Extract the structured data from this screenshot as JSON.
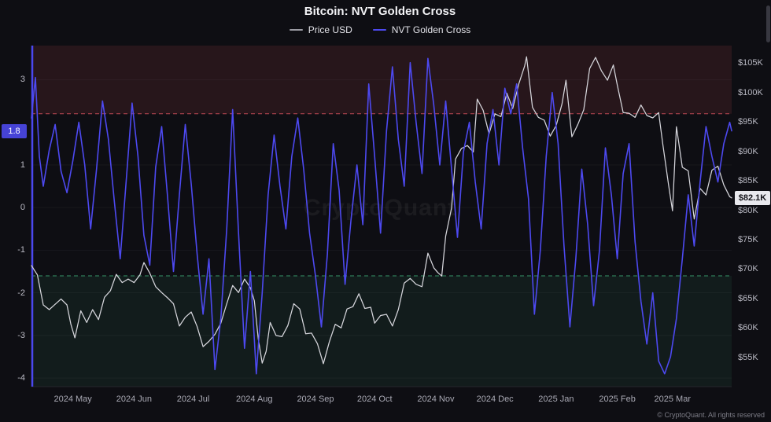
{
  "watermark": "CryptoQuant",
  "footer": "© CryptoQuant. All rights reserved",
  "chart_data": {
    "type": "line",
    "title": "Bitcoin: NVT Golden Cross",
    "x_unit": "days since 2024-04-10",
    "x_axis": {
      "ticks": [
        {
          "d": 21,
          "label": "2024 May"
        },
        {
          "d": 52,
          "label": "2024 Jun"
        },
        {
          "d": 82,
          "label": "2024 Jul"
        },
        {
          "d": 113,
          "label": "2024 Aug"
        },
        {
          "d": 144,
          "label": "2024 Sep"
        },
        {
          "d": 174,
          "label": "2024 Oct"
        },
        {
          "d": 205,
          "label": "2024 Nov"
        },
        {
          "d": 235,
          "label": "2024 Dec"
        },
        {
          "d": 266,
          "label": "2025 Jan"
        },
        {
          "d": 297,
          "label": "2025 Feb"
        },
        {
          "d": 325,
          "label": "2025 Mar"
        }
      ]
    },
    "left_axis": {
      "name": "NVT Golden Cross",
      "range": [
        -4.2,
        3.8
      ],
      "axis_line_color": "#4b48ef",
      "ticks": [
        {
          "v": 3,
          "label": "3"
        },
        {
          "v": 1,
          "label": "1"
        },
        {
          "v": 0,
          "label": "0"
        },
        {
          "v": -1,
          "label": "-1"
        },
        {
          "v": -2,
          "label": "-2"
        },
        {
          "v": -3,
          "label": "-3"
        },
        {
          "v": -4,
          "label": "-4"
        }
      ],
      "current": {
        "v": 1.8,
        "label": "1.8"
      }
    },
    "right_axis": {
      "name": "Price USD",
      "unit": "USD thousands",
      "range": [
        50,
        108
      ],
      "ticks": [
        {
          "v": 105,
          "label": "$105K"
        },
        {
          "v": 100,
          "label": "$100K"
        },
        {
          "v": 95,
          "label": "$95K"
        },
        {
          "v": 90,
          "label": "$90K"
        },
        {
          "v": 85,
          "label": "$85K"
        },
        {
          "v": 80,
          "label": "$80K"
        },
        {
          "v": 75,
          "label": "$75K"
        },
        {
          "v": 70,
          "label": "$70K"
        },
        {
          "v": 65,
          "label": "$65K"
        },
        {
          "v": 60,
          "label": "$60K"
        },
        {
          "v": 55,
          "label": "$55K"
        }
      ],
      "current": {
        "v": 82.1,
        "label": "$82.1K"
      }
    },
    "thresholds": {
      "overbought": {
        "value": 2.2,
        "color": "#d9535f"
      },
      "oversold": {
        "value": -1.6,
        "color": "#3fae7a"
      }
    },
    "zones": {
      "overbought_fill": "rgba(222,80,92,0.12)",
      "oversold_fill": "rgba(63,174,122,0.09)"
    },
    "series": [
      {
        "name": "Price USD",
        "axis": "right",
        "color": "#d6d6dc",
        "width": 1.25,
        "points": [
          [
            0,
            70.6
          ],
          [
            3,
            69.0
          ],
          [
            6,
            63.9
          ],
          [
            9,
            63.1
          ],
          [
            12,
            64.0
          ],
          [
            15,
            64.9
          ],
          [
            18,
            63.9
          ],
          [
            20,
            60.6
          ],
          [
            22,
            58.3
          ],
          [
            25,
            62.9
          ],
          [
            28,
            60.9
          ],
          [
            31,
            63.1
          ],
          [
            34,
            61.4
          ],
          [
            37,
            65.2
          ],
          [
            40,
            66.3
          ],
          [
            43,
            69.1
          ],
          [
            46,
            67.7
          ],
          [
            49,
            68.3
          ],
          [
            52,
            67.7
          ],
          [
            55,
            69.0
          ],
          [
            57,
            71.1
          ],
          [
            60,
            69.3
          ],
          [
            63,
            67.0
          ],
          [
            66,
            66.0
          ],
          [
            69,
            65.1
          ],
          [
            72,
            64.1
          ],
          [
            75,
            60.3
          ],
          [
            78,
            61.8
          ],
          [
            81,
            62.7
          ],
          [
            84,
            60.2
          ],
          [
            87,
            56.8
          ],
          [
            90,
            57.7
          ],
          [
            93,
            58.9
          ],
          [
            96,
            60.8
          ],
          [
            99,
            64.1
          ],
          [
            102,
            67.2
          ],
          [
            105,
            66.0
          ],
          [
            108,
            68.3
          ],
          [
            111,
            66.8
          ],
          [
            113,
            64.6
          ],
          [
            115,
            58.1
          ],
          [
            117,
            54.0
          ],
          [
            119,
            56.0
          ],
          [
            121,
            60.9
          ],
          [
            124,
            58.7
          ],
          [
            127,
            58.5
          ],
          [
            130,
            60.4
          ],
          [
            133,
            64.1
          ],
          [
            136,
            63.2
          ],
          [
            139,
            59.0
          ],
          [
            142,
            59.1
          ],
          [
            145,
            57.3
          ],
          [
            148,
            53.9
          ],
          [
            151,
            57.6
          ],
          [
            154,
            60.6
          ],
          [
            157,
            60.0
          ],
          [
            160,
            63.2
          ],
          [
            163,
            63.6
          ],
          [
            166,
            65.8
          ],
          [
            169,
            63.3
          ],
          [
            172,
            63.5
          ],
          [
            174,
            60.8
          ],
          [
            177,
            62.1
          ],
          [
            180,
            62.3
          ],
          [
            183,
            60.3
          ],
          [
            186,
            63.1
          ],
          [
            189,
            67.6
          ],
          [
            192,
            68.4
          ],
          [
            195,
            67.4
          ],
          [
            198,
            67.0
          ],
          [
            201,
            72.7
          ],
          [
            204,
            70.2
          ],
          [
            206,
            69.4
          ],
          [
            208,
            68.8
          ],
          [
            210,
            75.6
          ],
          [
            213,
            80.4
          ],
          [
            215,
            88.7
          ],
          [
            218,
            90.5
          ],
          [
            221,
            91.0
          ],
          [
            224,
            89.9
          ],
          [
            226,
            98.9
          ],
          [
            229,
            97.0
          ],
          [
            232,
            93.0
          ],
          [
            235,
            96.4
          ],
          [
            238,
            95.9
          ],
          [
            241,
            99.9
          ],
          [
            244,
            97.3
          ],
          [
            247,
            101.4
          ],
          [
            250,
            104.5
          ],
          [
            251,
            106.1
          ],
          [
            254,
            97.5
          ],
          [
            257,
            95.8
          ],
          [
            260,
            95.3
          ],
          [
            263,
            92.6
          ],
          [
            266,
            94.4
          ],
          [
            269,
            98.1
          ],
          [
            271,
            102.1
          ],
          [
            274,
            92.5
          ],
          [
            277,
            94.6
          ],
          [
            280,
            97.1
          ],
          [
            283,
            104.1
          ],
          [
            286,
            106.0
          ],
          [
            289,
            103.7
          ],
          [
            292,
            102.1
          ],
          [
            295,
            104.7
          ],
          [
            297,
            101.3
          ],
          [
            300,
            96.6
          ],
          [
            303,
            96.5
          ],
          [
            306,
            95.8
          ],
          [
            309,
            97.9
          ],
          [
            312,
            96.1
          ],
          [
            315,
            95.7
          ],
          [
            318,
            96.6
          ],
          [
            320,
            91.4
          ],
          [
            323,
            84.3
          ],
          [
            325,
            79.9
          ],
          [
            327,
            94.2
          ],
          [
            330,
            87.3
          ],
          [
            333,
            86.7
          ],
          [
            336,
            78.5
          ],
          [
            339,
            83.7
          ],
          [
            342,
            82.6
          ],
          [
            345,
            86.8
          ],
          [
            348,
            87.5
          ],
          [
            351,
            84.3
          ],
          [
            354,
            82.3
          ],
          [
            355,
            82.1
          ]
        ]
      },
      {
        "name": "NVT Golden Cross",
        "axis": "left",
        "color": "#4d49f0",
        "width": 1.6,
        "points": [
          [
            0,
            2.1
          ],
          [
            2,
            3.05
          ],
          [
            4,
            1.2
          ],
          [
            6,
            0.5
          ],
          [
            9,
            1.35
          ],
          [
            12,
            1.95
          ],
          [
            15,
            0.85
          ],
          [
            18,
            0.35
          ],
          [
            21,
            1.1
          ],
          [
            24,
            2.0
          ],
          [
            27,
            1.0
          ],
          [
            30,
            -0.5
          ],
          [
            33,
            0.9
          ],
          [
            36,
            2.5
          ],
          [
            39,
            1.6
          ],
          [
            42,
            0.15
          ],
          [
            45,
            -1.2
          ],
          [
            48,
            0.6
          ],
          [
            51,
            2.45
          ],
          [
            54,
            1.2
          ],
          [
            57,
            -0.65
          ],
          [
            60,
            -1.35
          ],
          [
            63,
            0.95
          ],
          [
            66,
            1.9
          ],
          [
            69,
            0.25
          ],
          [
            72,
            -1.5
          ],
          [
            75,
            0.3
          ],
          [
            78,
            1.95
          ],
          [
            81,
            0.55
          ],
          [
            84,
            -1.1
          ],
          [
            87,
            -2.5
          ],
          [
            90,
            -1.2
          ],
          [
            93,
            -3.8
          ],
          [
            96,
            -2.6
          ],
          [
            99,
            -0.5
          ],
          [
            102,
            2.3
          ],
          [
            105,
            -0.6
          ],
          [
            108,
            -3.3
          ],
          [
            111,
            -1.5
          ],
          [
            114,
            -3.9
          ],
          [
            117,
            -2.0
          ],
          [
            120,
            0.3
          ],
          [
            123,
            1.7
          ],
          [
            126,
            0.5
          ],
          [
            129,
            -0.5
          ],
          [
            132,
            1.2
          ],
          [
            135,
            2.1
          ],
          [
            138,
            0.9
          ],
          [
            141,
            -0.6
          ],
          [
            144,
            -1.6
          ],
          [
            147,
            -2.8
          ],
          [
            150,
            -1.1
          ],
          [
            153,
            1.5
          ],
          [
            156,
            0.4
          ],
          [
            159,
            -1.8
          ],
          [
            162,
            -0.3
          ],
          [
            165,
            1.0
          ],
          [
            168,
            -0.4
          ],
          [
            171,
            2.9
          ],
          [
            174,
            1.2
          ],
          [
            177,
            -0.6
          ],
          [
            180,
            1.8
          ],
          [
            183,
            3.3
          ],
          [
            186,
            1.6
          ],
          [
            189,
            0.5
          ],
          [
            192,
            3.4
          ],
          [
            195,
            2.0
          ],
          [
            198,
            0.8
          ],
          [
            201,
            3.5
          ],
          [
            204,
            2.4
          ],
          [
            207,
            1.0
          ],
          [
            210,
            2.5
          ],
          [
            213,
            0.9
          ],
          [
            216,
            -0.7
          ],
          [
            219,
            1.3
          ],
          [
            222,
            2.0
          ],
          [
            225,
            0.6
          ],
          [
            228,
            -0.5
          ],
          [
            231,
            1.5
          ],
          [
            234,
            2.3
          ],
          [
            237,
            1.0
          ],
          [
            240,
            2.8
          ],
          [
            243,
            2.2
          ],
          [
            246,
            2.9
          ],
          [
            249,
            1.4
          ],
          [
            252,
            0.2
          ],
          [
            255,
            -2.5
          ],
          [
            258,
            -1.0
          ],
          [
            261,
            1.2
          ],
          [
            264,
            2.7
          ],
          [
            267,
            1.5
          ],
          [
            270,
            -0.9
          ],
          [
            273,
            -2.8
          ],
          [
            276,
            -1.2
          ],
          [
            279,
            0.9
          ],
          [
            282,
            -0.4
          ],
          [
            285,
            -2.3
          ],
          [
            288,
            -1.0
          ],
          [
            291,
            1.4
          ],
          [
            294,
            0.3
          ],
          [
            297,
            -1.2
          ],
          [
            300,
            0.8
          ],
          [
            303,
            1.5
          ],
          [
            306,
            -0.8
          ],
          [
            309,
            -2.2
          ],
          [
            312,
            -3.2
          ],
          [
            315,
            -2.0
          ],
          [
            318,
            -3.6
          ],
          [
            321,
            -3.9
          ],
          [
            324,
            -3.5
          ],
          [
            327,
            -2.6
          ],
          [
            330,
            -1.2
          ],
          [
            333,
            0.3
          ],
          [
            336,
            -0.9
          ],
          [
            339,
            0.6
          ],
          [
            342,
            1.9
          ],
          [
            345,
            1.2
          ],
          [
            348,
            0.6
          ],
          [
            351,
            1.5
          ],
          [
            354,
            2.0
          ],
          [
            355,
            1.8
          ]
        ]
      }
    ]
  }
}
